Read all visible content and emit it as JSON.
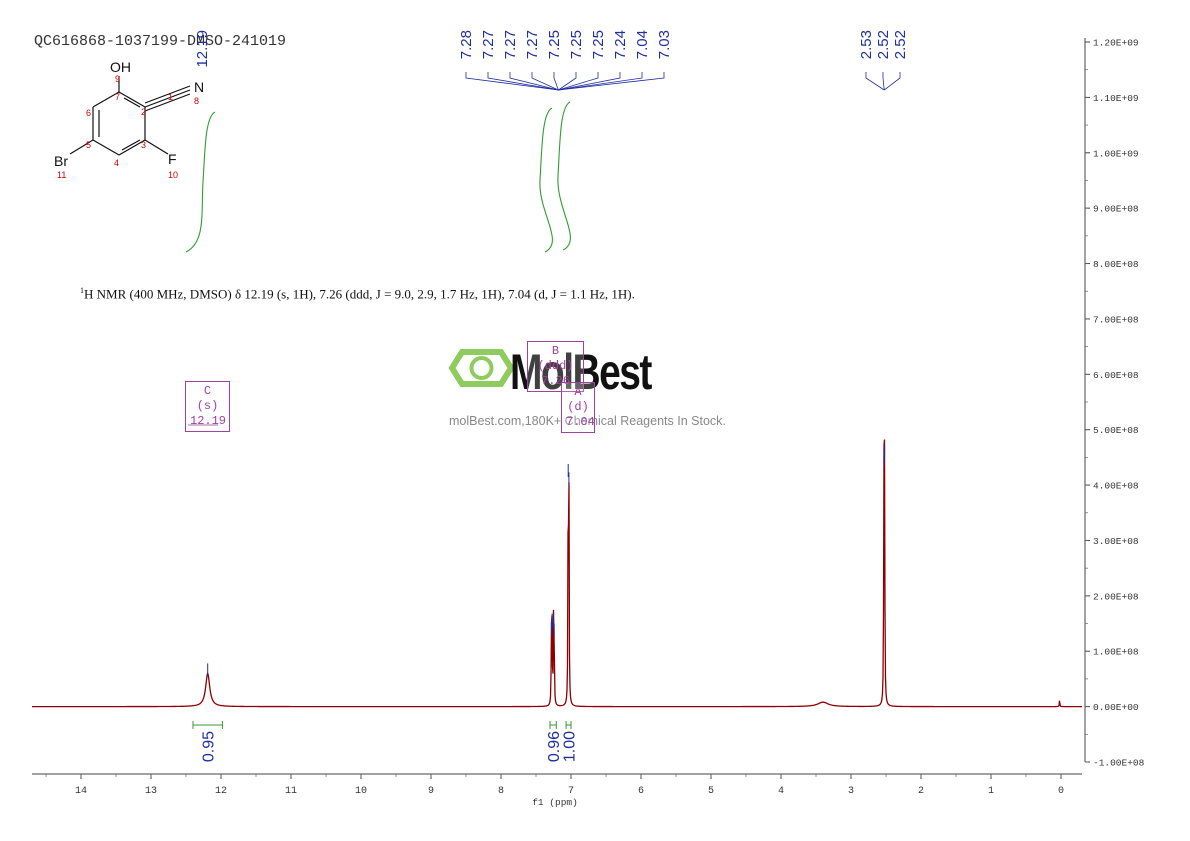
{
  "header": {
    "sample_id": "QC616868-1037199-DMSO-241019",
    "nmr_sup": "1",
    "nmr_description": "H NMR (400 MHz, DMSO) δ 12.19 (s, 1H), 7.26 (ddd, J = 9.0, 2.9, 1.7 Hz, 1H), 7.04 (d, J = 1.1 Hz, 1H)."
  },
  "watermark": {
    "brand": "MolBest",
    "tagline": "molBest.com,180K+ Chemical Reagents In Stock."
  },
  "molecule": {
    "atoms": [
      "OH",
      "N",
      "Br",
      "F"
    ],
    "atom_numbers": [
      "1",
      "2",
      "3",
      "4",
      "5",
      "6",
      "7",
      "8",
      "9",
      "10",
      "11"
    ]
  },
  "multiplets": [
    {
      "id": "C",
      "mult": "(s)",
      "shift": "12.19"
    },
    {
      "id": "B",
      "mult": "(ddd)",
      "shift": "7.26"
    },
    {
      "id": "A",
      "mult": "(d)",
      "shift": "7.04"
    }
  ],
  "colors": {
    "spectrum": "#8b0000",
    "integral": "#2e9e2e",
    "peak_label": "#1f2fa0",
    "multiplet": "#a040a0",
    "atom_number": "#d00000",
    "logo_green": "#7dc242"
  },
  "chart_data": {
    "type": "line",
    "title": "QC616868-1037199-DMSO-241019",
    "xlabel": "f1 (ppm)",
    "ylabel": "",
    "x_reversed": true,
    "xlim": [
      14.7,
      -0.3
    ],
    "ylim": [
      -100000000,
      1200000000
    ],
    "x_ticks": [
      "14",
      "13",
      "12",
      "11",
      "10",
      "9",
      "8",
      "7",
      "6",
      "5",
      "4",
      "3",
      "2",
      "1",
      "0"
    ],
    "y_ticks": [
      "1.20E+09",
      "1.10E+09",
      "1.00E+09",
      "9.00E+08",
      "8.00E+08",
      "7.00E+08",
      "6.00E+08",
      "5.00E+08",
      "4.00E+08",
      "3.00E+08",
      "2.00E+08",
      "1.00E+08",
      "0.00E+00",
      "-1.00E+08"
    ],
    "peaks": [
      {
        "ppm": 12.19,
        "height": 60000000
      },
      {
        "ppm": 7.28,
        "height": 135000000
      },
      {
        "ppm": 7.27,
        "height": 150000000
      },
      {
        "ppm": 7.25,
        "height": 148000000
      },
      {
        "ppm": 7.24,
        "height": 132000000
      },
      {
        "ppm": 7.04,
        "height": 420000000
      },
      {
        "ppm": 7.03,
        "height": 405000000
      },
      {
        "ppm": 3.4,
        "height": 8000000
      },
      {
        "ppm": 2.53,
        "height": 440000000
      },
      {
        "ppm": 2.52,
        "height": 455000000
      },
      {
        "ppm": 0.02,
        "height": 12000000
      }
    ],
    "peak_labels": [
      {
        "group": "aromatic",
        "values": [
          "7.28",
          "7.27",
          "7.27",
          "7.27",
          "7.25",
          "7.25",
          "7.25",
          "7.24",
          "7.04",
          "7.03"
        ],
        "center_ppm": 7.18
      },
      {
        "group": "solvent",
        "values": [
          "2.53",
          "2.52",
          "2.52"
        ],
        "center_ppm": 2.525
      },
      {
        "group": "oh",
        "values": [
          "12.19"
        ],
        "center_ppm": 12.19
      }
    ],
    "integrals": [
      {
        "ppm_from": 12.4,
        "ppm_to": 11.98,
        "value": "0.95"
      },
      {
        "ppm_from": 7.3,
        "ppm_to": 7.21,
        "value": "0.96"
      },
      {
        "ppm_from": 7.07,
        "ppm_to": 7.0,
        "value": "1.00"
      }
    ]
  }
}
